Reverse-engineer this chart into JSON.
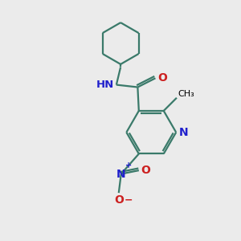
{
  "bg_color": "#ebebeb",
  "bond_color": "#3a7a6a",
  "N_color": "#2020cc",
  "O_color": "#cc2020",
  "line_width": 1.6,
  "fig_size": [
    3.0,
    3.0
  ],
  "dpi": 100,
  "xlim": [
    0,
    10
  ],
  "ylim": [
    0,
    10
  ]
}
